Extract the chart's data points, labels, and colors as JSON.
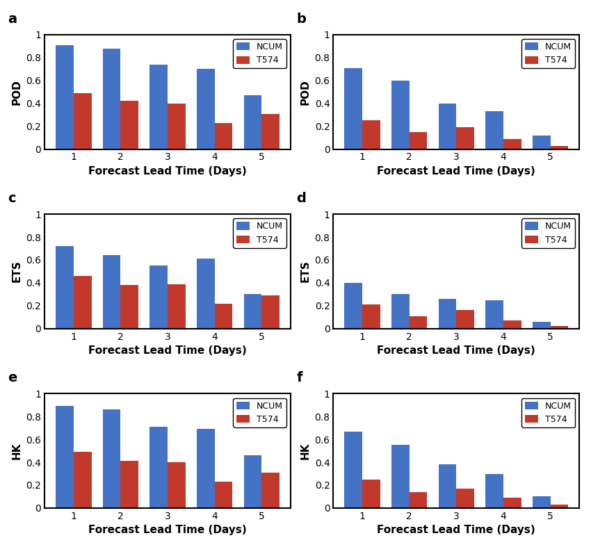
{
  "subplot_labels": [
    "a",
    "b",
    "c",
    "d",
    "e",
    "f"
  ],
  "x_labels": [
    1,
    2,
    3,
    4,
    5
  ],
  "y_labels": [
    "POD",
    "POD",
    "ETS",
    "ETS",
    "HK",
    "HK"
  ],
  "ncum_color": "#4472c4",
  "t574_color": "#c0392b",
  "bar_width": 0.38,
  "xlabel": "Forecast Lead Time (Days)",
  "legend_labels": [
    "NCUM",
    "T574"
  ],
  "ylim": [
    0,
    1.0
  ],
  "yticks": [
    0,
    0.2,
    0.4,
    0.6,
    0.8,
    1
  ],
  "data": {
    "a_ncum": [
      0.91,
      0.88,
      0.74,
      0.7,
      0.47
    ],
    "a_t574": [
      0.49,
      0.42,
      0.4,
      0.23,
      0.31
    ],
    "b_ncum": [
      0.71,
      0.6,
      0.4,
      0.33,
      0.12
    ],
    "b_t574": [
      0.25,
      0.15,
      0.19,
      0.09,
      0.03
    ],
    "c_ncum": [
      0.72,
      0.64,
      0.55,
      0.61,
      0.3
    ],
    "c_t574": [
      0.46,
      0.38,
      0.39,
      0.22,
      0.29
    ],
    "d_ncum": [
      0.4,
      0.3,
      0.26,
      0.25,
      0.06
    ],
    "d_t574": [
      0.21,
      0.11,
      0.16,
      0.07,
      0.02
    ],
    "e_ncum": [
      0.89,
      0.86,
      0.71,
      0.69,
      0.46
    ],
    "e_t574": [
      0.49,
      0.41,
      0.4,
      0.23,
      0.31
    ],
    "f_ncum": [
      0.67,
      0.55,
      0.38,
      0.3,
      0.1
    ],
    "f_t574": [
      0.25,
      0.14,
      0.17,
      0.09,
      0.03
    ]
  },
  "figure_bg": "#ffffff",
  "axes_bg": "#ffffff",
  "spine_color": "#000000",
  "spine_linewidth": 1.5,
  "tick_labelsize": 10,
  "xlabel_fontsize": 11,
  "ylabel_fontsize": 11,
  "legend_fontsize": 9,
  "subplot_label_fontsize": 14
}
